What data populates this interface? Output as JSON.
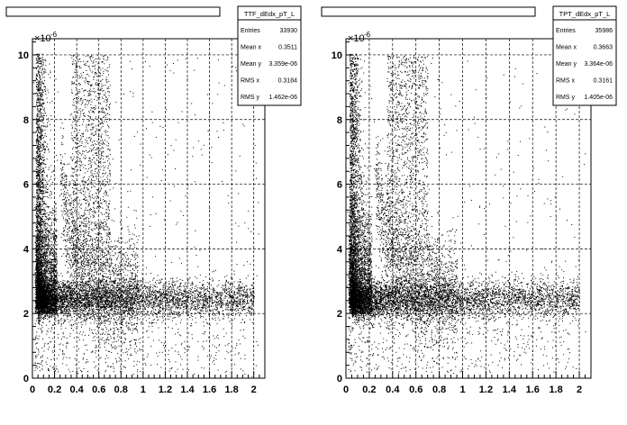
{
  "footer_text": "",
  "chart_data": [
    {
      "type": "scatter",
      "name": "TTF_dEdx_pT_L",
      "title": "",
      "xlabel": "",
      "ylabel": "",
      "xlim": [
        0,
        2.1
      ],
      "ylim": [
        0,
        10.5
      ],
      "y_exponent_label": "×10",
      "y_exponent_power": "-6",
      "x_ticks": [
        "0",
        "0.2",
        "0.4",
        "0.6",
        "0.8",
        "1",
        "1.2",
        "1.4",
        "1.6",
        "1.8",
        "2"
      ],
      "y_ticks": [
        "0",
        "2",
        "4",
        "6",
        "8",
        "10"
      ],
      "grid": true,
      "legend": "top-right",
      "stats": {
        "name": "TTF_dEdx_pT_L",
        "rows": [
          {
            "label": "Entries",
            "value": "33930"
          },
          {
            "label": "Mean x",
            "value": "0.3511"
          },
          {
            "label": "Mean y",
            "value": "3.359e-06"
          },
          {
            "label": "RMS x",
            "value": "0.3184"
          },
          {
            "label": "RMS y",
            "value": "1.462e-06"
          }
        ]
      },
      "seed": 17
    },
    {
      "type": "scatter",
      "name": "TPT_dEdx_pT_L",
      "title": "",
      "xlabel": "",
      "ylabel": "",
      "xlim": [
        0,
        2.1
      ],
      "ylim": [
        0,
        10.5
      ],
      "y_exponent_label": "×10",
      "y_exponent_power": "-6",
      "x_ticks": [
        "0",
        "0.2",
        "0.4",
        "0.6",
        "0.8",
        "1",
        "1.2",
        "1.4",
        "1.6",
        "1.8",
        "2"
      ],
      "y_ticks": [
        "0",
        "2",
        "4",
        "6",
        "8",
        "10"
      ],
      "grid": true,
      "legend": "top-right",
      "stats": {
        "name": "TPT_dEdx_pT_L",
        "rows": [
          {
            "label": "Entries",
            "value": "35986"
          },
          {
            "label": "Mean x",
            "value": "0.3663"
          },
          {
            "label": "Mean y",
            "value": "3.364e-06"
          },
          {
            "label": "RMS x",
            "value": "0.3161"
          },
          {
            "label": "RMS y",
            "value": "1.405e-06"
          }
        ]
      },
      "seed": 41
    }
  ]
}
